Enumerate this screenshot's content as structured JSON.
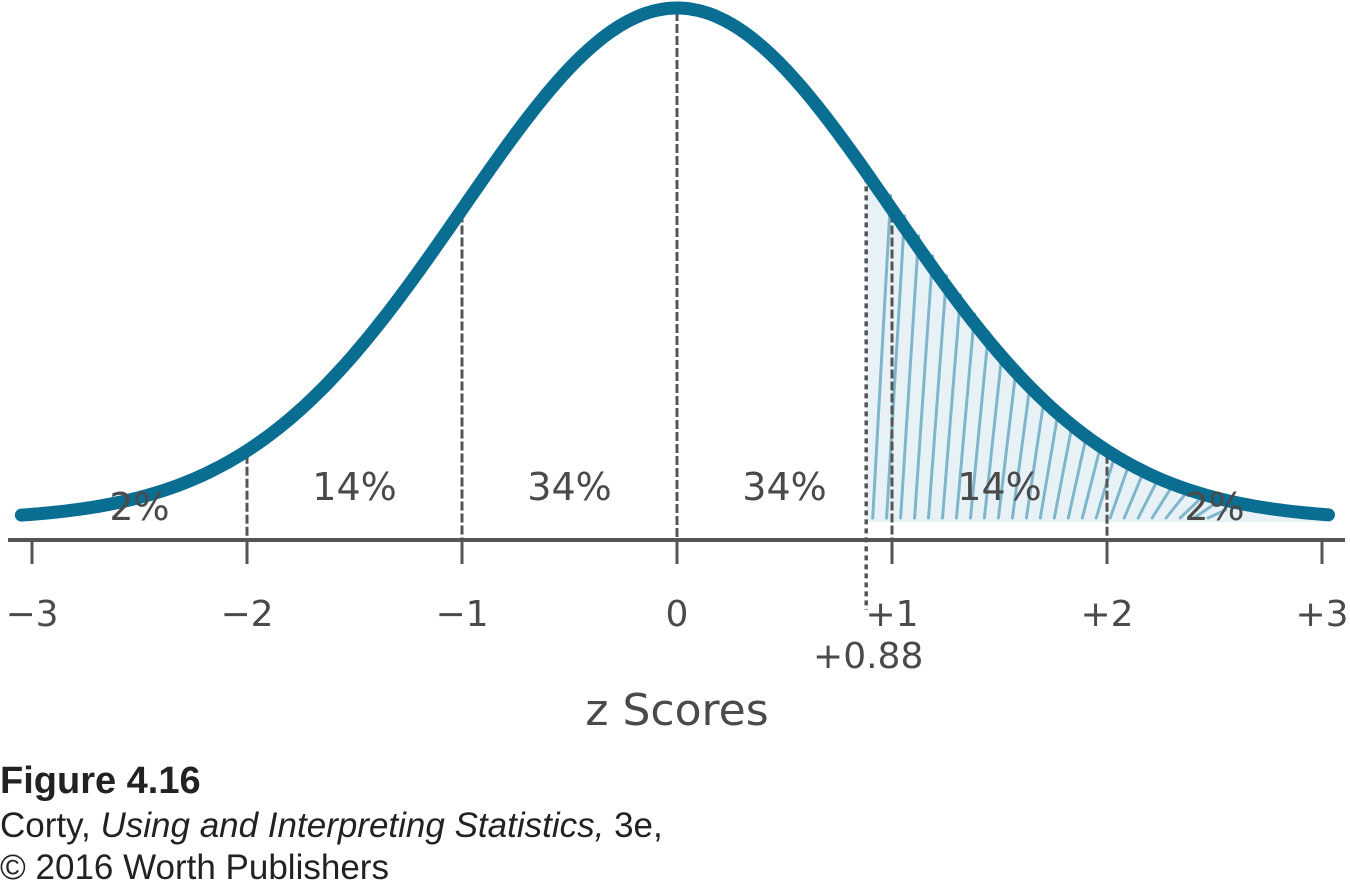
{
  "chart_data": {
    "type": "area",
    "x": [
      -3,
      -2.5,
      -2,
      -1.5,
      -1,
      -0.5,
      0,
      0.5,
      1,
      1.5,
      2,
      2.5,
      3
    ],
    "y": [
      0.0044,
      0.0175,
      0.054,
      0.1295,
      0.242,
      0.352,
      0.399,
      0.352,
      0.242,
      0.1295,
      0.054,
      0.0175,
      0.0044
    ],
    "xlim": [
      -3,
      3
    ],
    "xlabel": "z Scores",
    "ticks": [
      {
        "value": -3,
        "label": "−3"
      },
      {
        "value": -2,
        "label": "−2"
      },
      {
        "value": -1,
        "label": "−1"
      },
      {
        "value": 0,
        "label": "0"
      },
      {
        "value": 1,
        "label": "+1"
      },
      {
        "value": 2,
        "label": "+2"
      },
      {
        "value": 3,
        "label": "+3"
      }
    ],
    "regions": [
      {
        "from": -3,
        "to": -2,
        "label": "2%"
      },
      {
        "from": -2,
        "to": -1,
        "label": "14%"
      },
      {
        "from": -1,
        "to": 0,
        "label": "34%"
      },
      {
        "from": 0,
        "to": 1,
        "label": "34%"
      },
      {
        "from": 1,
        "to": 2,
        "label": "14%"
      },
      {
        "from": 2,
        "to": 3,
        "label": "2%"
      }
    ],
    "marker": {
      "value": 0.88,
      "label": "+0.88"
    },
    "shaded_from": 0.88,
    "colors": {
      "curve": "#0a6d92",
      "shade": "#7fb6cc",
      "axis": "#555555"
    }
  },
  "caption": {
    "figure": "Figure 4.16",
    "author": "Corty, ",
    "book": "Using and Interpreting Statistics,",
    "edition": " 3e,",
    "copyright": "© 2016 Worth Publishers"
  }
}
